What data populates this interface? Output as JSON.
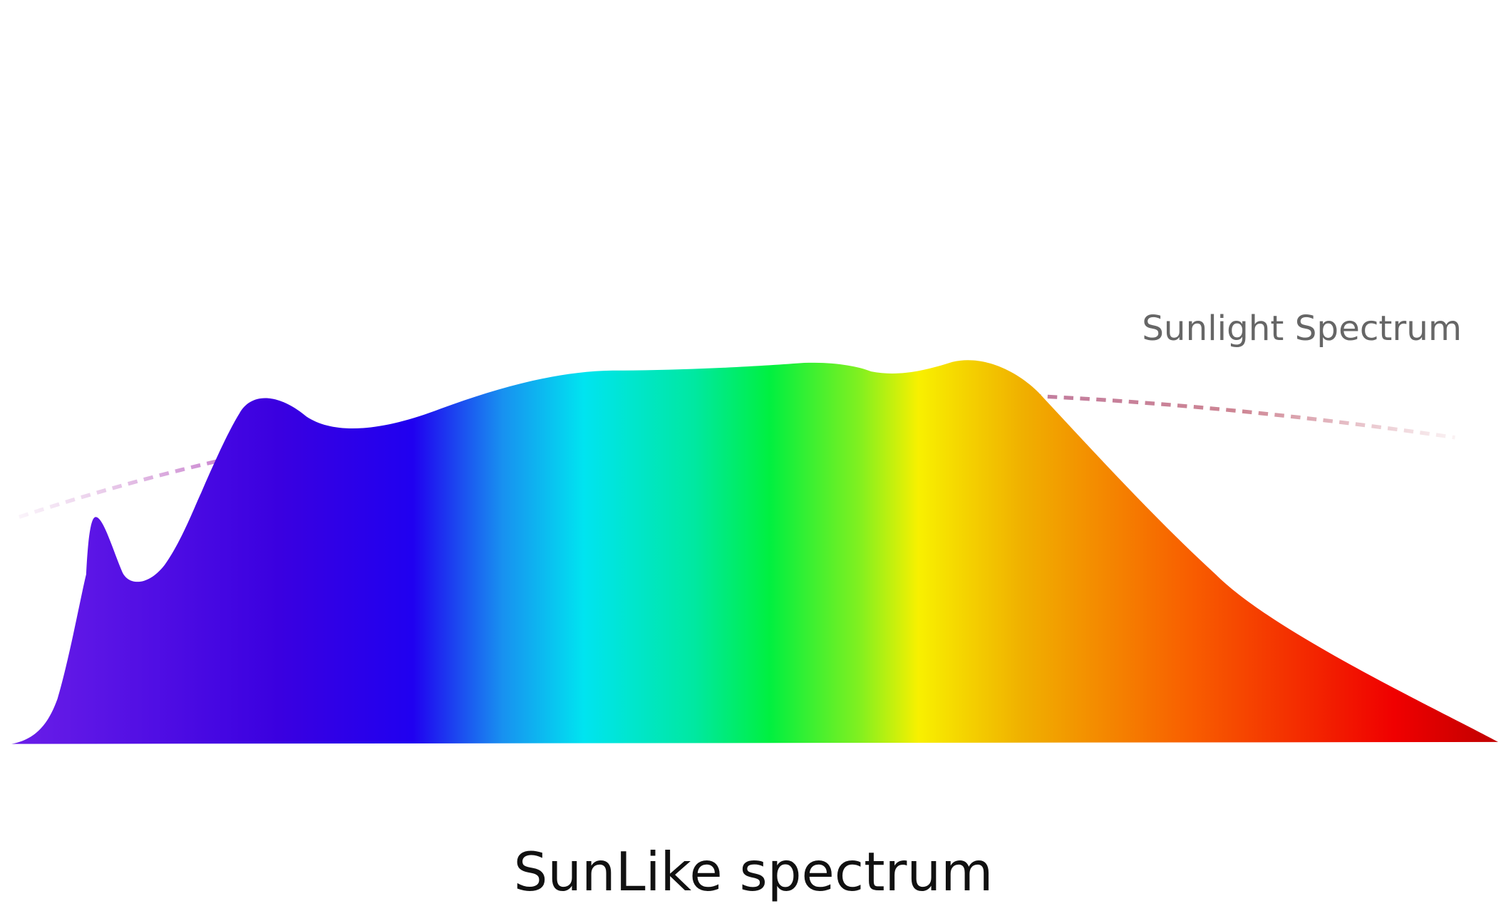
{
  "spectrum_label": "Sunlight Spectrum",
  "caption": "SunLike spectrum"
}
